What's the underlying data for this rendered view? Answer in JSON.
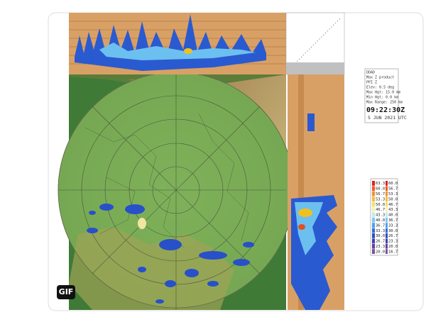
{
  "badge": "GIF",
  "info": {
    "lines": [
      "DDAD",
      "Max Z product",
      "PPI Z",
      "Elev: 0.5 deg",
      "Max Hgt: 15.0 km",
      "Min Hgt: 0.0 km",
      "Max Range: 250 km"
    ],
    "time": "09:22:30Z",
    "date": "5 JUN 2021 UTC"
  },
  "legend": {
    "colors": [
      "#e02020",
      "#f05a20",
      "#f09030",
      "#f0c040",
      "#f0e070",
      "#f8f0b0",
      "#c0e8f8",
      "#80c8f0",
      "#50a0e8",
      "#3070d8",
      "#2850c0",
      "#4040b0",
      "#6040a0",
      "#8050a0"
    ],
    "left": [
      "63.3",
      "60.0",
      "56.7",
      "53.3",
      "50.0",
      "46.7",
      "43.3",
      "40.0",
      "36.7",
      "33.3",
      "30.0",
      "26.7",
      "23.3",
      "20.0"
    ],
    "right": [
      "60.0",
      "56.7",
      "53.3",
      "50.0",
      "46.7",
      "43.3",
      "40.0",
      "36.7",
      "33.3",
      "30.0",
      "26.7",
      "23.3",
      "20.0",
      "16.7"
    ]
  }
}
